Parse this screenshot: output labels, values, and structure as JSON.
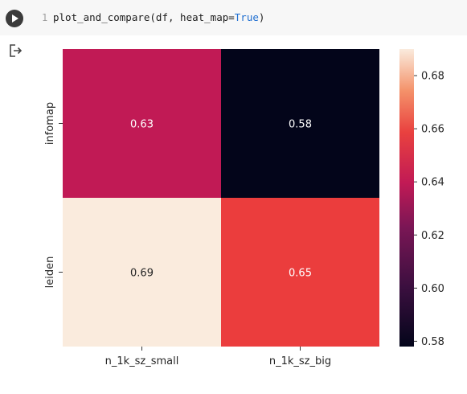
{
  "cell": {
    "line_number": "1",
    "code_func": "plot_and_compare(df, heat_map=",
    "code_value": "True",
    "code_close": ")"
  },
  "icons": {
    "run": "play-icon",
    "output": "output-exit-icon"
  },
  "colors": {
    "code_keyword": "#1f6fd1",
    "cmap_low": "#03051a",
    "cmap_high": "#faebdd"
  },
  "chart_data": {
    "type": "heatmap",
    "title": "",
    "xlabel": "",
    "ylabel": "",
    "x_categories": [
      "n_1k_sz_small",
      "n_1k_sz_big"
    ],
    "y_categories": [
      "infomap",
      "leiden"
    ],
    "values": [
      [
        0.63,
        0.58
      ],
      [
        0.69,
        0.65
      ]
    ],
    "annotations": [
      [
        "0.63",
        "0.58"
      ],
      [
        "0.69",
        "0.65"
      ]
    ],
    "colorbar": {
      "range": [
        0.578,
        0.69
      ],
      "ticks": [
        0.58,
        0.6,
        0.62,
        0.64,
        0.66,
        0.68
      ],
      "tick_labels": [
        "0.58",
        "0.60",
        "0.62",
        "0.64",
        "0.66",
        "0.68"
      ]
    },
    "cell_colors": [
      [
        "#c11a55",
        "#03051a"
      ],
      [
        "#faebdd",
        "#eb3d3d"
      ]
    ],
    "legend": "colorbar-right"
  }
}
